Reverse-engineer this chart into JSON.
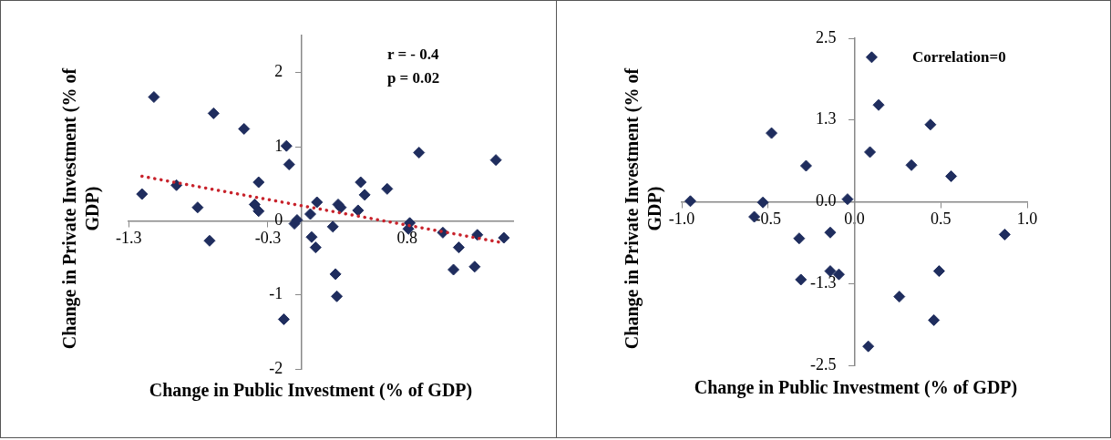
{
  "chart_data": [
    {
      "type": "scatter",
      "xlabel": "Change in Public Investment (% of GDP)",
      "ylabel": "Change in Private Investment (% of GDP)",
      "annotations": [
        "r = - 0.4",
        "p = 0.02"
      ],
      "marker": "diamond",
      "xlim": [
        -1.3,
        1.6
      ],
      "xticks": [
        -1.3,
        {
          "value": -0.25,
          "label": "-0.3"
        },
        0.8
      ],
      "ylim": [
        -2,
        2.5
      ],
      "yticks": [
        -2,
        -1,
        0,
        1,
        2
      ],
      "series": [
        {
          "color": "#1f2d5e",
          "x": [
            -1.2,
            -1.11,
            -0.94,
            -0.78,
            -0.69,
            -0.66,
            -0.43,
            -0.32,
            -0.35,
            -0.32,
            -0.11,
            -0.09,
            -0.13,
            -0.05,
            -0.03,
            0.07,
            0.12,
            0.08,
            0.11,
            0.24,
            0.28,
            0.3,
            0.26,
            0.27,
            0.43,
            0.45,
            0.48,
            0.65,
            0.82,
            0.81,
            0.89,
            1.07,
            1.19,
            1.15,
            1.33,
            1.31,
            1.47,
            1.53
          ],
          "values": [
            0.36,
            1.67,
            0.48,
            0.18,
            -0.27,
            1.45,
            1.24,
            0.52,
            0.22,
            0.13,
            1.01,
            0.76,
            -1.33,
            -0.04,
            0.01,
            0.09,
            0.25,
            -0.22,
            -0.36,
            -0.08,
            0.22,
            0.18,
            -0.72,
            -1.02,
            0.14,
            0.52,
            0.35,
            0.43,
            -0.03,
            -0.11,
            0.92,
            -0.16,
            -0.36,
            -0.66,
            -0.19,
            -0.62,
            0.82,
            -0.23
          ]
        },
        {
          "type": "line",
          "color": "#c8232c",
          "line_style": "dotted",
          "marker": "none",
          "x": [
            -1.2,
            1.5
          ],
          "values": [
            0.6,
            -0.29
          ]
        }
      ]
    },
    {
      "type": "scatter",
      "xlabel": "Change in Public Investment (% of GDP)",
      "ylabel": "Change in Private Investment (% of GDP)",
      "annotations": [
        "Correlation=0"
      ],
      "marker": "diamond",
      "xlim": [
        -1,
        1
      ],
      "xticks": [
        {
          "value": -1,
          "label": "-1.0"
        },
        {
          "value": -0.5,
          "label": "-0.5"
        },
        {
          "value": 0,
          "label": "0.0"
        },
        {
          "value": 0.5,
          "label": "0.5"
        },
        {
          "value": 1,
          "label": "1.0"
        }
      ],
      "ylim": [
        -2.5,
        2.5
      ],
      "yticks": [
        {
          "value": -2.5,
          "label": "-2.5"
        },
        {
          "value": -1.25,
          "label": "-1.3"
        },
        {
          "value": 0,
          "label": "0.0"
        },
        {
          "value": 1.25,
          "label": "1.3"
        },
        {
          "value": 2.5,
          "label": "2.5"
        }
      ],
      "series": [
        {
          "color": "#1f2d5e",
          "x": [
            -0.95,
            -0.53,
            -0.58,
            -0.48,
            -0.28,
            -0.32,
            -0.14,
            -0.14,
            -0.09,
            -0.31,
            -0.04,
            0.1,
            0.14,
            0.09,
            0.44,
            0.33,
            0.56,
            0.87,
            0.49,
            0.26,
            0.46,
            0.08
          ],
          "values": [
            0.01,
            -0.01,
            -0.23,
            1.05,
            0.55,
            -0.56,
            -0.47,
            -1.06,
            -1.11,
            -1.19,
            0.04,
            2.21,
            1.48,
            0.76,
            1.18,
            0.56,
            0.39,
            -0.5,
            -1.06,
            -1.45,
            -1.81,
            -2.21
          ]
        }
      ]
    }
  ]
}
